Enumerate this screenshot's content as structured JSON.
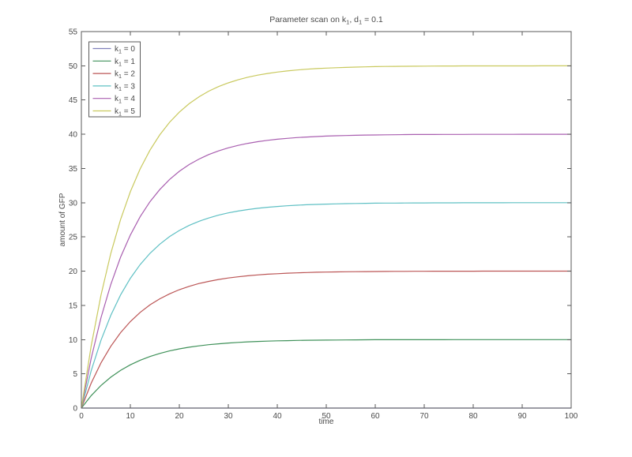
{
  "figure": {
    "background": "#ffffff"
  },
  "colors": {
    "axis": "#5a5a5a",
    "text": "#4a4a4a",
    "legend_border": "#5a5a5a",
    "background": "#ffffff"
  },
  "chart_data": {
    "type": "line",
    "title": "Parameter scan on k_1, d_1 = 0.1",
    "title_parts": [
      {
        "t": "Parameter scan on k"
      },
      {
        "t": "1",
        "sub": true
      },
      {
        "t": ", d"
      },
      {
        "t": "1",
        "sub": true
      },
      {
        "t": " = 0.1"
      }
    ],
    "xlabel": "time",
    "ylabel": "amount of GFP",
    "xlim": [
      0,
      100
    ],
    "ylim": [
      0,
      55
    ],
    "xticks": [
      0,
      10,
      20,
      30,
      40,
      50,
      60,
      70,
      80,
      90,
      100
    ],
    "yticks": [
      0,
      5,
      10,
      15,
      20,
      25,
      30,
      35,
      40,
      45,
      50,
      55
    ],
    "grid": false,
    "legend_position": "upper-left",
    "x": [
      0,
      2,
      4,
      6,
      8,
      10,
      12,
      14,
      16,
      18,
      20,
      22,
      24,
      26,
      28,
      30,
      32,
      34,
      36,
      38,
      40,
      42,
      44,
      46,
      48,
      50,
      52,
      54,
      56,
      58,
      60,
      62,
      64,
      66,
      68,
      70,
      72,
      74,
      76,
      78,
      80,
      82,
      84,
      86,
      88,
      90,
      92,
      94,
      96,
      98,
      100
    ],
    "series": [
      {
        "name": "k_1 = 0",
        "label_parts": [
          {
            "t": "k"
          },
          {
            "t": "1",
            "sub": true
          },
          {
            "t": " = 0"
          }
        ],
        "color": "#8080bb",
        "values": [
          0,
          0,
          0,
          0,
          0,
          0,
          0,
          0,
          0,
          0,
          0,
          0,
          0,
          0,
          0,
          0,
          0,
          0,
          0,
          0,
          0,
          0,
          0,
          0,
          0,
          0,
          0,
          0,
          0,
          0,
          0,
          0,
          0,
          0,
          0,
          0,
          0,
          0,
          0,
          0,
          0,
          0,
          0,
          0,
          0,
          0,
          0,
          0,
          0,
          0,
          0
        ]
      },
      {
        "name": "k_1 = 1",
        "label_parts": [
          {
            "t": "k"
          },
          {
            "t": "1",
            "sub": true
          },
          {
            "t": " = 1"
          }
        ],
        "color": "#3f9159",
        "values": [
          0,
          1.81,
          3.3,
          4.51,
          5.51,
          6.32,
          6.99,
          7.53,
          7.98,
          8.35,
          8.65,
          8.89,
          9.09,
          9.26,
          9.39,
          9.5,
          9.59,
          9.67,
          9.73,
          9.78,
          9.82,
          9.85,
          9.88,
          9.9,
          9.92,
          9.93,
          9.94,
          9.95,
          9.96,
          9.97,
          9.98,
          9.98,
          9.98,
          9.99,
          9.99,
          9.99,
          9.99,
          9.99,
          10,
          10,
          10,
          10,
          10,
          10,
          10,
          10,
          10,
          10,
          10,
          10,
          10
        ]
      },
      {
        "name": "k_1 = 2",
        "label_parts": [
          {
            "t": "k"
          },
          {
            "t": "1",
            "sub": true
          },
          {
            "t": " = 2"
          }
        ],
        "color": "#bb5555",
        "values": [
          0,
          3.63,
          6.59,
          9.02,
          11.01,
          12.64,
          13.98,
          15.07,
          15.96,
          16.69,
          17.29,
          17.78,
          18.19,
          18.51,
          18.78,
          19.0,
          19.18,
          19.33,
          19.45,
          19.55,
          19.63,
          19.7,
          19.75,
          19.8,
          19.84,
          19.87,
          19.89,
          19.91,
          19.93,
          19.94,
          19.95,
          19.96,
          19.97,
          19.97,
          19.98,
          19.98,
          19.99,
          19.99,
          19.99,
          19.99,
          19.99,
          20,
          20,
          20,
          20,
          20,
          20,
          20,
          20,
          20,
          20
        ]
      },
      {
        "name": "k_1 = 3",
        "label_parts": [
          {
            "t": "k"
          },
          {
            "t": "1",
            "sub": true
          },
          {
            "t": " = 3"
          }
        ],
        "color": "#5fc0c4",
        "values": [
          0,
          5.44,
          9.89,
          13.54,
          16.52,
          18.96,
          20.96,
          22.6,
          23.94,
          25.04,
          25.94,
          26.68,
          27.28,
          27.77,
          28.18,
          28.51,
          28.78,
          29.0,
          29.18,
          29.33,
          29.45,
          29.55,
          29.63,
          29.7,
          29.75,
          29.8,
          29.83,
          29.86,
          29.89,
          29.91,
          29.93,
          29.94,
          29.95,
          29.96,
          29.97,
          29.97,
          29.98,
          29.98,
          29.98,
          29.99,
          29.99,
          29.99,
          29.99,
          29.99,
          30,
          30,
          30,
          30,
          30,
          30,
          30
        ]
      },
      {
        "name": "k_1 = 4",
        "label_parts": [
          {
            "t": "k"
          },
          {
            "t": "1",
            "sub": true
          },
          {
            "t": " = 4"
          }
        ],
        "color": "#a95fb0",
        "values": [
          0,
          7.25,
          13.19,
          18.05,
          22.03,
          25.28,
          27.95,
          30.14,
          31.92,
          33.39,
          34.59,
          35.57,
          36.37,
          37.03,
          37.57,
          38.01,
          38.37,
          38.67,
          38.91,
          39.11,
          39.27,
          39.4,
          39.51,
          39.6,
          39.67,
          39.73,
          39.78,
          39.82,
          39.85,
          39.88,
          39.9,
          39.92,
          39.93,
          39.95,
          39.96,
          39.96,
          39.97,
          39.98,
          39.98,
          39.98,
          39.99,
          39.99,
          39.99,
          39.99,
          39.99,
          40,
          40,
          40,
          40,
          40,
          40
        ]
      },
      {
        "name": "k_1 = 5",
        "label_parts": [
          {
            "t": "k"
          },
          {
            "t": "1",
            "sub": true
          },
          {
            "t": " = 5"
          }
        ],
        "color": "#c9c95e",
        "values": [
          0,
          9.06,
          16.48,
          22.56,
          27.53,
          31.61,
          34.94,
          37.67,
          39.91,
          41.74,
          43.23,
          44.46,
          45.46,
          46.29,
          46.96,
          47.51,
          47.96,
          48.33,
          48.63,
          48.88,
          49.08,
          49.25,
          49.39,
          49.5,
          49.59,
          49.66,
          49.72,
          49.77,
          49.81,
          49.85,
          49.88,
          49.9,
          49.92,
          49.93,
          49.94,
          49.95,
          49.96,
          49.97,
          49.97,
          49.98,
          49.98,
          49.99,
          49.99,
          49.99,
          49.99,
          49.99,
          49.99,
          50,
          50,
          50,
          50
        ]
      }
    ]
  }
}
